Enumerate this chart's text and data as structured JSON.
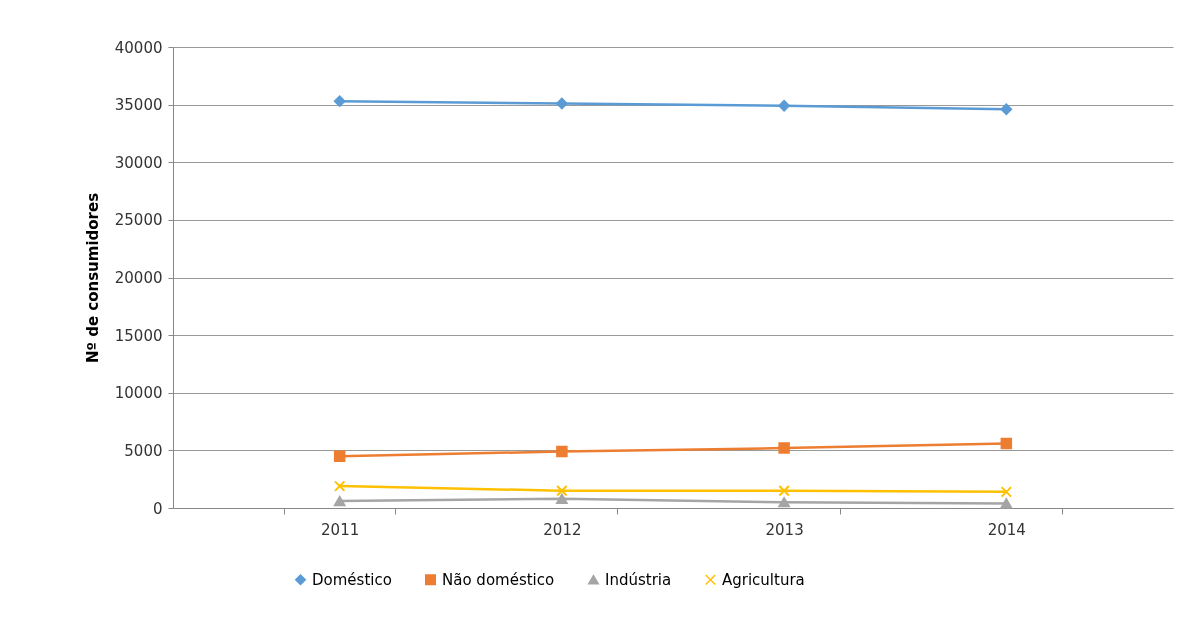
{
  "chart_data": {
    "type": "line",
    "ylabel": "Nº de consumidores",
    "categories": [
      "2011",
      "2012",
      "2013",
      "2014"
    ],
    "ylim": [
      0,
      40000
    ],
    "yticks": [
      0,
      5000,
      10000,
      15000,
      20000,
      25000,
      30000,
      35000,
      40000
    ],
    "grid": "y",
    "legend": "bottom",
    "series": [
      {
        "name": "Doméstico",
        "color": "#5b9bd5",
        "marker": "diamond",
        "values": [
          35300,
          35100,
          34900,
          34600
        ]
      },
      {
        "name": "Não doméstico",
        "color": "#ed7d31",
        "marker": "square",
        "values": [
          4500,
          4900,
          5200,
          5600
        ]
      },
      {
        "name": "Indústria",
        "color": "#a5a5a5",
        "marker": "triangle",
        "values": [
          600,
          800,
          500,
          400
        ]
      },
      {
        "name": "Agricultura",
        "color": "#ffc000",
        "marker": "cross",
        "values": [
          1900,
          1500,
          1500,
          1400
        ]
      }
    ]
  }
}
